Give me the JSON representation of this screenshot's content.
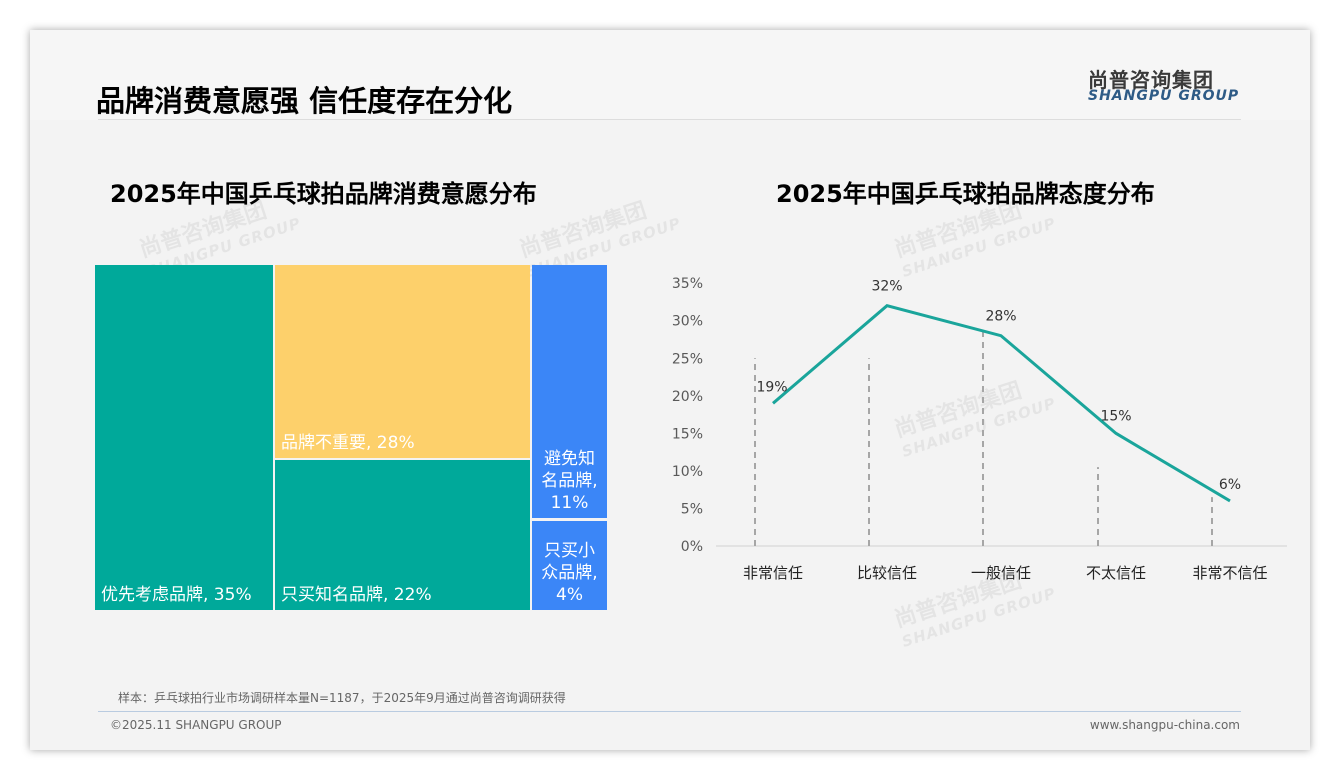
{
  "header": {
    "title": "品牌消费意愿强 信任度存在分化",
    "logo_cn": "尚普咨询集团",
    "logo_en": "SHANGPU GROUP"
  },
  "watermark": {
    "cn": "尚普咨询集团",
    "en": "SHANGPU GROUP"
  },
  "chart_data": [
    {
      "type": "treemap",
      "title": "2025年中国乒乓球拍品牌消费意愿分布",
      "items": [
        {
          "label": "优先考虑品牌, 35%",
          "value": 35,
          "color": "#00a99a"
        },
        {
          "label": "品牌不重要, 28%",
          "value": 28,
          "color": "#fdd06b"
        },
        {
          "label": "只买知名品牌, 22%",
          "value": 22,
          "color": "#00a99a"
        },
        {
          "label": "避免知名品牌, 11%",
          "value": 11,
          "color": "#3b86f7"
        },
        {
          "label": "只买小众品牌, 4%",
          "value": 4,
          "color": "#3b86f7"
        }
      ]
    },
    {
      "type": "line",
      "title": "2025年中国乒乓球拍品牌态度分布",
      "categories": [
        "非常信任",
        "比较信任",
        "一般信任",
        "不太信任",
        "非常不信任"
      ],
      "values": [
        19,
        32,
        28,
        15,
        6
      ],
      "labels": [
        "19%",
        "32%",
        "28%",
        "15%",
        "6%"
      ],
      "yticks": [
        "0%",
        "5%",
        "10%",
        "15%",
        "20%",
        "25%",
        "30%",
        "35%"
      ],
      "ylim": [
        0,
        35
      ],
      "color": "#1aa59b"
    }
  ],
  "footer": {
    "note": "样本：乒乓球拍行业市场调研样本量N=1187，于2025年9月通过尚普咨询调研获得",
    "copyright": "©2025.11 SHANGPU GROUP",
    "url": "www.shangpu-china.com"
  }
}
